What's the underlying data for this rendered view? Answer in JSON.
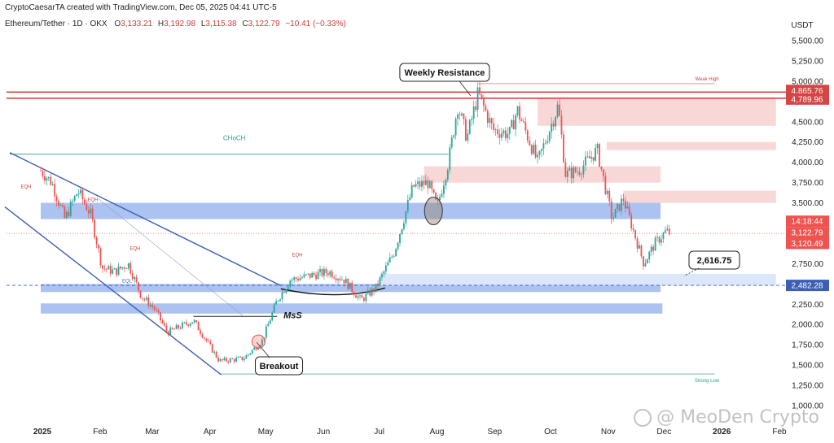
{
  "header": {
    "created_by": "CryptoCaesarTA created with TradingView.com, Dec 05, 2025 04:41 UTC-5",
    "symbol": "Ethereum/Tether · 1D · OKX",
    "open_label": "O",
    "open": "3,133.21",
    "high_label": "H",
    "high": "3,192.98",
    "low_label": "L",
    "low": "3,115.38",
    "close_label": "C",
    "close": "3,122.79",
    "change": "−10.41 (−0.33%)"
  },
  "watermark": "@ MeoDen Crypto",
  "colors": {
    "up": "#26a69a",
    "down": "#ef5350",
    "resistance": "#d64545",
    "demand_zone": "#9db7ef",
    "supply_zone": "#f6c9c9",
    "channel": "#3c5fb4",
    "choch": "#2f9c8c"
  },
  "chart_data": {
    "type": "candlestick",
    "title": "",
    "currency": "USDT",
    "x_labels": [
      "2025",
      "Feb",
      "Mar",
      "Apr",
      "May",
      "Jun",
      "Jul",
      "Aug",
      "Sep",
      "Oct",
      "Nov",
      "Dec",
      "2026",
      "Feb"
    ],
    "y_ticks": [
      1000,
      1250,
      1500,
      1750,
      2000,
      2250,
      2500,
      2750,
      3000,
      3250,
      3500,
      3750,
      4000,
      4250,
      4500,
      4750,
      5000,
      5250,
      5500
    ],
    "y_tick_labels": [
      "1,000.00",
      "1,250.00",
      "1,500.00",
      "1,750.00",
      "2,000.00",
      "2,250.00",
      "2,500.00",
      "2,750.00",
      "3,000.00",
      "3,250.00",
      "3,500.00",
      "3,750.00",
      "4,000.00",
      "4,250.00",
      "4,500.00",
      "4,750.00",
      "5,000.00",
      "5,250.00",
      "5,500.00"
    ],
    "ylim": [
      880,
      5760
    ],
    "price_path": [
      [
        "2025-01-01",
        3900
      ],
      [
        "2025-01-07",
        3750
      ],
      [
        "2025-01-14",
        3300
      ],
      [
        "2025-01-21",
        3650
      ],
      [
        "2025-01-28",
        3350
      ],
      [
        "2025-02-03",
        2700
      ],
      [
        "2025-02-10",
        2650
      ],
      [
        "2025-02-17",
        2750
      ],
      [
        "2025-02-24",
        2350
      ],
      [
        "2025-03-03",
        2200
      ],
      [
        "2025-03-10",
        1900
      ],
      [
        "2025-03-24",
        2050
      ],
      [
        "2025-04-07",
        1550
      ],
      [
        "2025-04-20",
        1580
      ],
      [
        "2025-04-30",
        1800
      ],
      [
        "2025-05-08",
        2300
      ],
      [
        "2025-05-15",
        2550
      ],
      [
        "2025-05-25",
        2600
      ],
      [
        "2025-06-05",
        2650
      ],
      [
        "2025-06-13",
        2550
      ],
      [
        "2025-06-22",
        2300
      ],
      [
        "2025-06-30",
        2450
      ],
      [
        "2025-07-10",
        2900
      ],
      [
        "2025-07-20",
        3700
      ],
      [
        "2025-07-28",
        3750
      ],
      [
        "2025-08-02",
        3450
      ],
      [
        "2025-08-08",
        4000
      ],
      [
        "2025-08-13",
        4700
      ],
      [
        "2025-08-18",
        4300
      ],
      [
        "2025-08-24",
        4850
      ],
      [
        "2025-09-01",
        4400
      ],
      [
        "2025-09-10",
        4350
      ],
      [
        "2025-09-14",
        4650
      ],
      [
        "2025-09-25",
        4000
      ],
      [
        "2025-10-06",
        4700
      ],
      [
        "2025-10-10",
        3850
      ],
      [
        "2025-10-17",
        3900
      ],
      [
        "2025-10-27",
        4150
      ],
      [
        "2025-11-04",
        3300
      ],
      [
        "2025-11-10",
        3550
      ],
      [
        "2025-11-21",
        2750
      ],
      [
        "2025-11-27",
        3000
      ],
      [
        "2025-12-03",
        3150
      ],
      [
        "2025-12-05",
        3123
      ]
    ],
    "horizontal_levels": [
      {
        "label": "4,865.76",
        "value": 4865.76
      },
      {
        "label": "4,789.96",
        "value": 4789.96
      },
      {
        "label": "3,122.79",
        "value": 3122.79
      },
      {
        "label": "3,120.49",
        "value": 3120.49
      },
      {
        "label": "2,482.28",
        "value": 2482.28
      }
    ],
    "price_badges": [
      "4,865.76",
      "4,789.96",
      "14:18:44",
      "3,122.79",
      "3,120.49",
      "2,482.28"
    ],
    "demand_zones": [
      {
        "y_from": 3300,
        "y_to": 3500,
        "x_from": "2025-01-01",
        "x_to": "2025-11-30"
      },
      {
        "y_from": 2400,
        "y_to": 2500,
        "x_from": "2025-01-01",
        "x_to": "2025-11-30"
      },
      {
        "y_from": 2135,
        "y_to": 2260,
        "x_from": "2025-01-01",
        "x_to": "2025-12-01"
      },
      {
        "y_from": 2480,
        "y_to": 2625,
        "x_from": "2025-07-02",
        "x_to": "2026-01-31"
      }
    ],
    "supply_zones": [
      {
        "y_from": 4450,
        "y_to": 4800,
        "x_from": "2025-09-25",
        "x_to": "2026-01-31"
      },
      {
        "y_from": 4150,
        "y_to": 4250,
        "x_from": "2025-11-01",
        "x_to": "2026-01-31"
      },
      {
        "y_from": 3750,
        "y_to": 3950,
        "x_from": "2025-07-26",
        "x_to": "2025-11-30"
      },
      {
        "y_from": 3500,
        "y_to": 3650,
        "x_from": "2025-11-10",
        "x_to": "2026-01-31"
      }
    ],
    "annotations": {
      "weekly_resistance": "Weekly Resistance",
      "breakout": "Breakout",
      "mss": "MsS",
      "choch": "CHoCH",
      "eqh_1": "EQH",
      "eqh_2": "EQH",
      "eqh_3": "EQH",
      "eqh_4": "EQH",
      "eql": "EQL",
      "weak_high": "Weak High",
      "strong_low": "Strong Low",
      "target_2616": "2,616.75"
    }
  }
}
